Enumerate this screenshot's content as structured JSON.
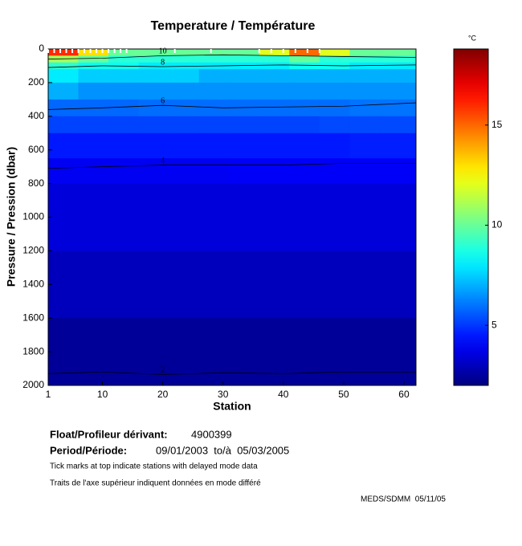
{
  "chart_data": {
    "type": "heatmap",
    "title": "Temperature / Température",
    "xlabel": "Station",
    "ylabel": "Pressure / Pression (dbar)",
    "colorbar_label": "°C",
    "x_edges": [
      1,
      6,
      11,
      16,
      21,
      26,
      31,
      36,
      41,
      46,
      51,
      56,
      62
    ],
    "y_edges": [
      0,
      40,
      80,
      120,
      200,
      300,
      400,
      500,
      650,
      800,
      1200,
      1600,
      2000
    ],
    "values": [
      [
        16,
        13,
        10,
        10,
        10,
        10,
        10,
        12,
        15,
        12,
        10,
        10
      ],
      [
        11,
        10,
        9,
        9,
        9,
        9,
        9,
        9,
        10,
        9,
        9,
        9
      ],
      [
        9,
        8.5,
        8.5,
        8,
        8,
        8,
        8,
        8,
        8.5,
        8.5,
        8,
        8
      ],
      [
        8,
        7.5,
        7.5,
        7.5,
        7.5,
        7,
        7,
        7,
        7,
        7,
        7,
        7
      ],
      [
        7,
        6.5,
        6.5,
        6.5,
        6.5,
        6.5,
        6.5,
        6.5,
        6.5,
        6.5,
        6.5,
        6.5
      ],
      [
        5.8,
        5.8,
        5.8,
        5.9,
        5.9,
        5.9,
        5.9,
        5.9,
        5.9,
        5.9,
        6,
        6
      ],
      [
        5.2,
        5.2,
        5.2,
        5.2,
        5.2,
        5.2,
        5.2,
        5.2,
        5.2,
        5.3,
        5.3,
        5.3
      ],
      [
        4.5,
        4.5,
        4.5,
        4.5,
        4.5,
        4.5,
        4.5,
        4.5,
        4.5,
        4.5,
        4.6,
        4.6
      ],
      [
        3.9,
        3.9,
        3.9,
        3.9,
        3.9,
        3.9,
        4,
        4,
        4,
        4,
        4,
        4
      ],
      [
        3.5,
        3.5,
        3.5,
        3.5,
        3.5,
        3.5,
        3.5,
        3.5,
        3.5,
        3.5,
        3.5,
        3.5
      ],
      [
        3,
        3,
        3,
        3,
        3,
        3,
        3,
        3,
        3,
        3,
        3,
        3
      ],
      [
        2.4,
        2.4,
        2.4,
        2.4,
        2.4,
        2.4,
        2.4,
        2.4,
        2.4,
        2.4,
        2.4,
        2.4
      ]
    ],
    "clim": [
      2,
      18.8
    ],
    "colorbar_ticks": [
      5,
      10,
      15
    ],
    "contours": [
      {
        "level": 10,
        "x": [
          1,
          10,
          20,
          30,
          40,
          50,
          62
        ],
        "y": [
          60,
          55,
          40,
          35,
          40,
          45,
          50
        ]
      },
      {
        "level": 8,
        "x": [
          1,
          10,
          20,
          30,
          40,
          50,
          62
        ],
        "y": [
          110,
          100,
          105,
          100,
          95,
          100,
          95
        ]
      },
      {
        "level": 6,
        "x": [
          1,
          10,
          20,
          30,
          40,
          50,
          62
        ],
        "y": [
          360,
          350,
          335,
          350,
          345,
          340,
          320
        ]
      },
      {
        "level": 4,
        "x": [
          1,
          10,
          20,
          30,
          40,
          50,
          62
        ],
        "y": [
          710,
          700,
          690,
          690,
          690,
          680,
          680
        ]
      },
      {
        "level": 2,
        "x": [
          1,
          10,
          20,
          30,
          40,
          50,
          62
        ],
        "y": [
          1930,
          1920,
          1935,
          1925,
          1930,
          1920,
          1920
        ]
      }
    ],
    "delayed_mode_stations": [
      1,
      2,
      3,
      4,
      5,
      6,
      7,
      8,
      9,
      10,
      11,
      12,
      13,
      14,
      22,
      28,
      36,
      38,
      40,
      42,
      44,
      46
    ],
    "xlim": [
      1,
      62
    ],
    "ylim": [
      0,
      2000
    ],
    "xticks": [
      1,
      10,
      20,
      30,
      40,
      50,
      60
    ],
    "yticks": [
      0,
      200,
      400,
      600,
      800,
      1000,
      1200,
      1400,
      1600,
      1800,
      2000
    ]
  },
  "info": {
    "float_label": "Float/Profileur dérivant:",
    "float_id": "4900399",
    "period_label": "Period/Période:",
    "period": "09/01/2003  to/à  05/03/2005",
    "note1": "Tick marks at top indicate stations with delayed mode data",
    "note2": "Traits de l'axe supérieur indiquent données en mode différé",
    "credit": "MEDS/SDMM  05/11/05"
  }
}
